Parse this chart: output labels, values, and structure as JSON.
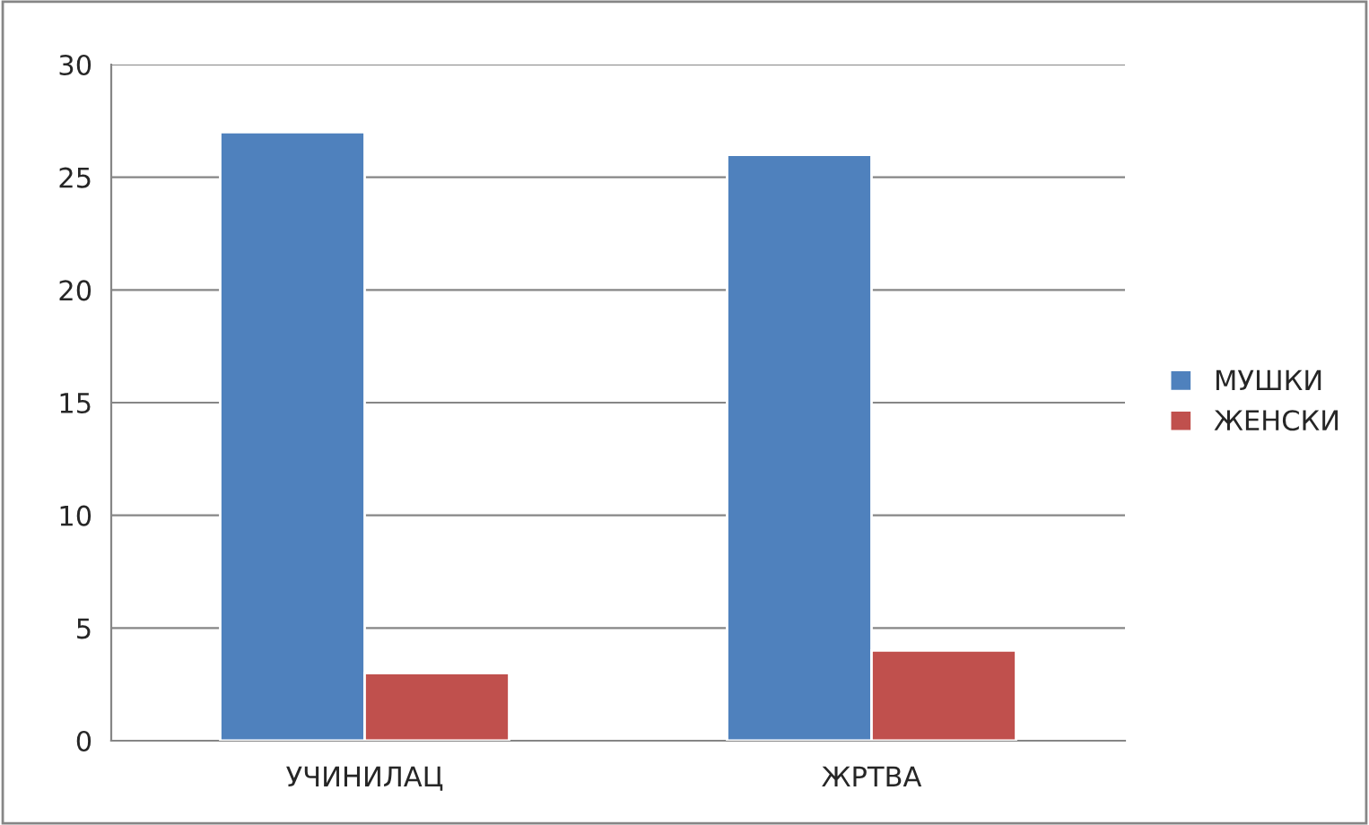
{
  "chart_data": {
    "type": "bar",
    "categories": [
      "УЧИНИЛАЦ",
      "ЖРТВА"
    ],
    "series": [
      {
        "name": "МУШКИ",
        "color": "#4f81bd",
        "values": [
          27,
          26
        ]
      },
      {
        "name": "ЖЕНСКИ",
        "color": "#c0504d",
        "values": [
          3,
          4
        ]
      }
    ],
    "ylim": [
      0,
      30
    ],
    "yticks": [
      0,
      5,
      10,
      15,
      20,
      25,
      30
    ],
    "grid": "y",
    "legend": "right"
  }
}
